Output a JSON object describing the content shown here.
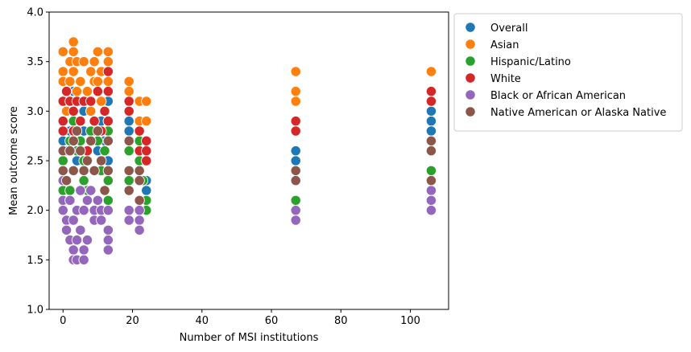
{
  "chart_data": {
    "type": "scatter",
    "title": "",
    "xlabel": "Number of MSI institutions",
    "ylabel": "Mean outcome score",
    "xlim": [
      -4,
      111
    ],
    "ylim": [
      1.0,
      4.0
    ],
    "xticks": [
      0,
      20,
      40,
      60,
      80,
      100
    ],
    "yticks": [
      1.0,
      1.5,
      2.0,
      2.5,
      3.0,
      3.5,
      4.0
    ],
    "grid": false,
    "legend_position": "outside-top-right",
    "series": [
      {
        "name": "Overall",
        "color": "#1f77b4",
        "points": [
          [
            0,
            2.7
          ],
          [
            0,
            2.5
          ],
          [
            1,
            2.6
          ],
          [
            2,
            2.8
          ],
          [
            3,
            2.9
          ],
          [
            3,
            3.2
          ],
          [
            4,
            2.5
          ],
          [
            5,
            2.7
          ],
          [
            6,
            2.8
          ],
          [
            6,
            3.0
          ],
          [
            7,
            2.6
          ],
          [
            8,
            3.0
          ],
          [
            9,
            2.8
          ],
          [
            10,
            2.6
          ],
          [
            11,
            2.9
          ],
          [
            12,
            2.7
          ],
          [
            13,
            2.5
          ],
          [
            13,
            3.1
          ],
          [
            13,
            2.3
          ],
          [
            19,
            2.9
          ],
          [
            19,
            2.8
          ],
          [
            22,
            2.6
          ],
          [
            22,
            2.4
          ],
          [
            24,
            2.3
          ],
          [
            24,
            2.2
          ],
          [
            67,
            2.6
          ],
          [
            67,
            2.5
          ],
          [
            106,
            3.0
          ],
          [
            106,
            2.9
          ],
          [
            106,
            2.8
          ]
        ]
      },
      {
        "name": "Asian",
        "color": "#ff7f0e",
        "points": [
          [
            0,
            3.6
          ],
          [
            0,
            3.4
          ],
          [
            0,
            3.3
          ],
          [
            0,
            3.1
          ],
          [
            1,
            3.0
          ],
          [
            1,
            3.2
          ],
          [
            2,
            3.5
          ],
          [
            2,
            3.3
          ],
          [
            3,
            3.7
          ],
          [
            3,
            3.6
          ],
          [
            3,
            3.4
          ],
          [
            4,
            3.5
          ],
          [
            4,
            3.2
          ],
          [
            5,
            3.3
          ],
          [
            6,
            3.5
          ],
          [
            6,
            3.1
          ],
          [
            7,
            3.2
          ],
          [
            8,
            3.4
          ],
          [
            8,
            3.0
          ],
          [
            9,
            3.5
          ],
          [
            9,
            3.3
          ],
          [
            10,
            3.6
          ],
          [
            10,
            3.3
          ],
          [
            11,
            3.4
          ],
          [
            11,
            3.1
          ],
          [
            13,
            3.6
          ],
          [
            13,
            3.5
          ],
          [
            13,
            3.3
          ],
          [
            13,
            2.9
          ],
          [
            19,
            3.3
          ],
          [
            19,
            3.2
          ],
          [
            22,
            3.1
          ],
          [
            22,
            2.9
          ],
          [
            24,
            3.1
          ],
          [
            24,
            2.9
          ],
          [
            67,
            3.4
          ],
          [
            67,
            3.2
          ],
          [
            67,
            3.1
          ],
          [
            106,
            3.4
          ]
        ]
      },
      {
        "name": "Hispanic/Latino",
        "color": "#2ca02c",
        "points": [
          [
            0,
            2.5
          ],
          [
            0,
            2.4
          ],
          [
            0,
            2.2
          ],
          [
            1,
            2.3
          ],
          [
            2,
            2.7
          ],
          [
            2,
            2.2
          ],
          [
            3,
            2.9
          ],
          [
            3,
            2.4
          ],
          [
            4,
            2.6
          ],
          [
            5,
            2.7
          ],
          [
            6,
            2.3
          ],
          [
            6,
            2.5
          ],
          [
            7,
            2.2
          ],
          [
            8,
            2.8
          ],
          [
            9,
            2.4
          ],
          [
            10,
            2.7
          ],
          [
            11,
            2.4
          ],
          [
            12,
            2.6
          ],
          [
            13,
            2.8
          ],
          [
            13,
            2.3
          ],
          [
            13,
            2.1
          ],
          [
            19,
            2.6
          ],
          [
            19,
            2.3
          ],
          [
            22,
            2.7
          ],
          [
            22,
            2.5
          ],
          [
            23,
            2.3
          ],
          [
            24,
            2.1
          ],
          [
            24,
            2.0
          ],
          [
            67,
            2.1
          ],
          [
            106,
            2.4
          ]
        ]
      },
      {
        "name": "White",
        "color": "#d62728",
        "points": [
          [
            0,
            3.1
          ],
          [
            0,
            2.9
          ],
          [
            0,
            2.8
          ],
          [
            1,
            3.2
          ],
          [
            2,
            3.1
          ],
          [
            3,
            3.0
          ],
          [
            3,
            2.8
          ],
          [
            4,
            3.1
          ],
          [
            5,
            2.9
          ],
          [
            6,
            3.1
          ],
          [
            7,
            2.6
          ],
          [
            8,
            3.1
          ],
          [
            9,
            2.9
          ],
          [
            10,
            3.2
          ],
          [
            11,
            2.8
          ],
          [
            12,
            3.0
          ],
          [
            13,
            3.4
          ],
          [
            13,
            3.2
          ],
          [
            13,
            2.9
          ],
          [
            19,
            3.1
          ],
          [
            19,
            3.0
          ],
          [
            22,
            2.8
          ],
          [
            22,
            2.6
          ],
          [
            24,
            2.7
          ],
          [
            24,
            2.6
          ],
          [
            24,
            2.5
          ],
          [
            67,
            2.9
          ],
          [
            67,
            2.8
          ],
          [
            106,
            3.2
          ],
          [
            106,
            3.1
          ]
        ]
      },
      {
        "name": "Black or African American",
        "color": "#9467bd",
        "points": [
          [
            0,
            2.3
          ],
          [
            0,
            2.1
          ],
          [
            0,
            2.0
          ],
          [
            1,
            1.9
          ],
          [
            1,
            1.8
          ],
          [
            2,
            2.1
          ],
          [
            2,
            1.7
          ],
          [
            3,
            1.9
          ],
          [
            3,
            1.6
          ],
          [
            3,
            1.5
          ],
          [
            4,
            2.0
          ],
          [
            4,
            1.7
          ],
          [
            4,
            1.5
          ],
          [
            5,
            2.2
          ],
          [
            5,
            1.8
          ],
          [
            6,
            1.6
          ],
          [
            6,
            1.5
          ],
          [
            6,
            2.0
          ],
          [
            7,
            1.7
          ],
          [
            7,
            2.1
          ],
          [
            8,
            2.2
          ],
          [
            9,
            1.9
          ],
          [
            9,
            2.0
          ],
          [
            10,
            2.1
          ],
          [
            11,
            2.0
          ],
          [
            11,
            1.9
          ],
          [
            13,
            2.0
          ],
          [
            13,
            1.8
          ],
          [
            13,
            1.7
          ],
          [
            13,
            1.6
          ],
          [
            19,
            2.0
          ],
          [
            19,
            1.9
          ],
          [
            22,
            2.0
          ],
          [
            22,
            1.9
          ],
          [
            22,
            1.8
          ],
          [
            67,
            2.0
          ],
          [
            67,
            1.9
          ],
          [
            106,
            2.2
          ],
          [
            106,
            2.1
          ],
          [
            106,
            2.0
          ]
        ]
      },
      {
        "name": "Native American or Alaska Native",
        "color": "#8c564b",
        "points": [
          [
            0,
            2.6
          ],
          [
            0,
            2.4
          ],
          [
            1,
            2.3
          ],
          [
            2,
            2.6
          ],
          [
            3,
            2.7
          ],
          [
            3,
            2.4
          ],
          [
            4,
            2.8
          ],
          [
            5,
            2.6
          ],
          [
            6,
            2.4
          ],
          [
            7,
            2.5
          ],
          [
            8,
            2.7
          ],
          [
            9,
            2.4
          ],
          [
            10,
            2.8
          ],
          [
            11,
            2.5
          ],
          [
            12,
            2.2
          ],
          [
            13,
            2.7
          ],
          [
            13,
            2.4
          ],
          [
            19,
            2.7
          ],
          [
            19,
            2.4
          ],
          [
            19,
            2.2
          ],
          [
            22,
            2.4
          ],
          [
            22,
            2.3
          ],
          [
            22,
            2.1
          ],
          [
            67,
            2.4
          ],
          [
            67,
            2.3
          ],
          [
            106,
            2.7
          ],
          [
            106,
            2.6
          ],
          [
            106,
            2.3
          ]
        ]
      }
    ]
  }
}
